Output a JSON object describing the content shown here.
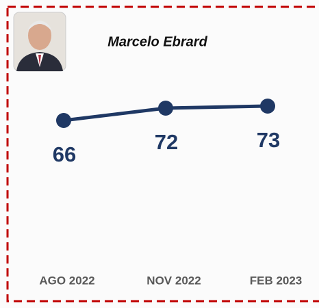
{
  "chart_data": {
    "type": "line",
    "title": "Marcelo Ebrard",
    "categories": [
      "AGO 2022",
      "NOV 2022",
      "FEB 2023"
    ],
    "values": [
      66,
      72,
      73
    ],
    "color": "#1f3864"
  }
}
